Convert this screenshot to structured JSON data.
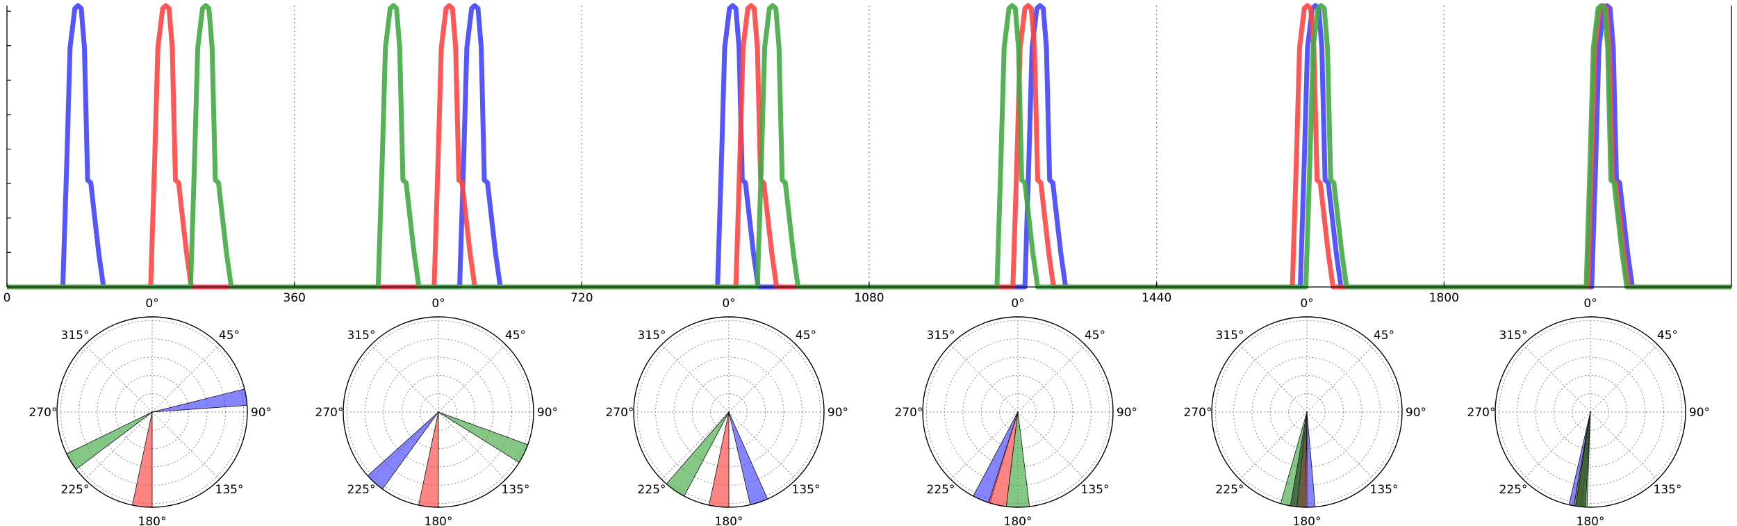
{
  "colors": {
    "blue": "#4444ff",
    "red": "#ff4444",
    "green": "#44aa44",
    "dark": "#224422"
  },
  "chart_data": [
    {
      "type": "line",
      "title": "",
      "xlabel": "",
      "ylabel": "",
      "xlim": [
        0,
        2160
      ],
      "ylim": [
        0,
        1.0
      ],
      "x_ticks": [
        "0",
        "360",
        "720",
        "1080",
        "1440",
        "1800"
      ],
      "grid": "vertical dotted at x ticks",
      "y_tick_count": 9,
      "pulse_shape": {
        "x_offsets": [
          -15,
          -10,
          -6,
          0,
          4,
          8,
          12,
          16,
          20,
          24,
          30,
          36
        ],
        "y_values": [
          0,
          0.45,
          0.85,
          0.99,
          1.0,
          0.99,
          0.85,
          0.38,
          0.37,
          0.27,
          0.12,
          0
        ]
      },
      "series": [
        {
          "color": "blue",
          "peaks": [
            85,
            582,
            905,
            1290,
            1635,
            2000
          ]
        },
        {
          "color": "red",
          "peaks": [
            195,
            550,
            928,
            1275,
            1625,
            1995
          ]
        },
        {
          "color": "green",
          "peaks": [
            245,
            480,
            955,
            1255,
            1642,
            1993
          ]
        }
      ]
    },
    {
      "type": "polar",
      "count": 6,
      "theta_labels": [
        "0°",
        "45°",
        "90°",
        "135°",
        "180°",
        "225°",
        "270°",
        "315°"
      ],
      "grid": "dotted rings and spokes",
      "wedges": [
        [
          {
            "color": "blue",
            "from": 76,
            "to": 86
          },
          {
            "color": "red",
            "from": 180,
            "to": 192
          },
          {
            "color": "green",
            "from": 233,
            "to": 244
          }
        ],
        [
          {
            "color": "blue",
            "from": 216,
            "to": 228
          },
          {
            "color": "red",
            "from": 180,
            "to": 192
          },
          {
            "color": "green",
            "from": 110,
            "to": 122
          }
        ],
        [
          {
            "color": "blue",
            "from": 156,
            "to": 167
          },
          {
            "color": "red",
            "from": 180,
            "to": 192
          },
          {
            "color": "green",
            "from": 208,
            "to": 221
          }
        ],
        [
          {
            "color": "blue",
            "from": 197,
            "to": 208
          },
          {
            "color": "red",
            "from": 187,
            "to": 198
          },
          {
            "color": "green",
            "from": 173,
            "to": 187
          }
        ],
        [
          {
            "color": "blue",
            "from": 175,
            "to": 180
          },
          {
            "color": "red",
            "from": 180,
            "to": 186
          },
          {
            "color": "green",
            "from": 186,
            "to": 196
          },
          {
            "color": "dark",
            "from": 181,
            "to": 190
          }
        ],
        [
          {
            "color": "blue",
            "from": 190,
            "to": 193
          },
          {
            "color": "red",
            "from": 185,
            "to": 190
          },
          {
            "color": "green",
            "from": 182,
            "to": 190
          },
          {
            "color": "dark",
            "from": 183,
            "to": 189
          }
        ]
      ]
    }
  ]
}
